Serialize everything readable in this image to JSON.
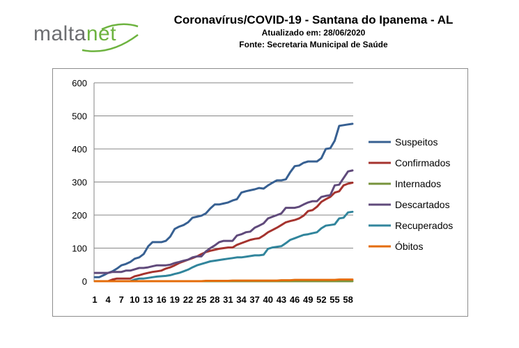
{
  "header": {
    "logo": {
      "text_main": "malta",
      "text_accent": "net"
    },
    "title": "Coronavírus/COVID-19 - Santana do Ipanema - AL",
    "updated": "Atualizado em: 28/06/2020",
    "source": "Fonte: Secretaria Municipal de Saúde"
  },
  "colors": {
    "logo_gray": "#6d6e71",
    "logo_green": "#6db33f"
  },
  "chart_data": {
    "type": "line",
    "title": "",
    "xlabel": "",
    "ylabel": "",
    "ylim": [
      0,
      600
    ],
    "yticks": [
      0,
      100,
      200,
      300,
      400,
      500,
      600
    ],
    "grid": true,
    "legend_position": "right",
    "x": [
      1,
      2,
      3,
      4,
      5,
      6,
      7,
      8,
      9,
      10,
      11,
      12,
      13,
      14,
      15,
      16,
      17,
      18,
      19,
      20,
      21,
      22,
      23,
      24,
      25,
      26,
      27,
      28,
      29,
      30,
      31,
      32,
      33,
      34,
      35,
      36,
      37,
      38,
      39,
      40,
      41,
      42,
      43,
      44,
      45,
      46,
      47,
      48,
      49,
      50,
      51,
      52,
      53,
      54,
      55,
      56,
      57,
      58,
      59
    ],
    "xtick_labels": [
      "1",
      "4",
      "7",
      "10",
      "13",
      "16",
      "19",
      "22",
      "25",
      "28",
      "31",
      "34",
      "37",
      "40",
      "43",
      "46",
      "49",
      "52",
      "55",
      "58"
    ],
    "series": [
      {
        "name": "Suspeitos",
        "color": "#376092",
        "values": [
          12,
          12,
          18,
          25,
          30,
          38,
          48,
          52,
          58,
          68,
          72,
          82,
          105,
          118,
          118,
          118,
          122,
          135,
          158,
          165,
          170,
          178,
          192,
          195,
          198,
          205,
          220,
          232,
          232,
          235,
          238,
          244,
          248,
          268,
          272,
          275,
          278,
          282,
          280,
          290,
          298,
          305,
          305,
          308,
          330,
          348,
          350,
          358,
          362,
          362,
          362,
          372,
          400,
          402,
          425,
          470,
          472,
          474,
          476
        ]
      },
      {
        "name": "Confirmados",
        "color": "#a5332e",
        "values": [
          0,
          0,
          0,
          0,
          5,
          8,
          8,
          8,
          8,
          15,
          18,
          22,
          25,
          28,
          30,
          32,
          38,
          42,
          48,
          55,
          60,
          65,
          70,
          75,
          82,
          88,
          92,
          95,
          98,
          100,
          102,
          102,
          110,
          115,
          120,
          125,
          128,
          130,
          138,
          148,
          155,
          162,
          170,
          178,
          182,
          185,
          190,
          198,
          212,
          215,
          225,
          240,
          248,
          255,
          268,
          272,
          290,
          295,
          298
        ]
      },
      {
        "name": "Internados",
        "color": "#77933c",
        "values": [
          0,
          0,
          0,
          0,
          0,
          0,
          0,
          0,
          0,
          0,
          0,
          0,
          0,
          0,
          0,
          0,
          0,
          0,
          0,
          0,
          0,
          0,
          0,
          0,
          0,
          0,
          0,
          0,
          0,
          0,
          0,
          0,
          0,
          0,
          0,
          0,
          0,
          0,
          0,
          0,
          0,
          0,
          0,
          0,
          0,
          0,
          0,
          0,
          0,
          0,
          0,
          0,
          0,
          0,
          0,
          0,
          0,
          0,
          0
        ]
      },
      {
        "name": "Descartados",
        "color": "#604a7b",
        "values": [
          25,
          25,
          25,
          25,
          28,
          28,
          28,
          32,
          32,
          36,
          40,
          40,
          42,
          45,
          48,
          48,
          48,
          50,
          55,
          58,
          62,
          65,
          72,
          75,
          75,
          90,
          100,
          108,
          118,
          122,
          122,
          122,
          138,
          142,
          148,
          150,
          162,
          168,
          175,
          190,
          195,
          200,
          205,
          222,
          222,
          222,
          225,
          232,
          238,
          242,
          242,
          255,
          258,
          260,
          290,
          292,
          312,
          332,
          335
        ]
      },
      {
        "name": "Recuperados",
        "color": "#31859c",
        "values": [
          0,
          0,
          0,
          0,
          0,
          0,
          0,
          0,
          0,
          5,
          8,
          8,
          10,
          12,
          14,
          15,
          16,
          18,
          22,
          25,
          30,
          35,
          42,
          48,
          52,
          56,
          60,
          62,
          64,
          66,
          68,
          70,
          72,
          72,
          74,
          76,
          78,
          78,
          80,
          98,
          102,
          104,
          106,
          115,
          125,
          130,
          135,
          140,
          142,
          145,
          148,
          160,
          168,
          170,
          172,
          190,
          192,
          208,
          210
        ]
      },
      {
        "name": "Óbitos",
        "color": "#e46c0a",
        "values": [
          0,
          0,
          0,
          0,
          0,
          0,
          0,
          0,
          0,
          0,
          0,
          0,
          0,
          0,
          0,
          0,
          0,
          0,
          0,
          0,
          0,
          0,
          0,
          0,
          0,
          1,
          1,
          1,
          1,
          1,
          1,
          2,
          2,
          2,
          2,
          2,
          2,
          2,
          2,
          2,
          2,
          2,
          3,
          3,
          3,
          4,
          4,
          4,
          4,
          4,
          4,
          4,
          4,
          4,
          4,
          5,
          5,
          5,
          5
        ]
      }
    ]
  }
}
